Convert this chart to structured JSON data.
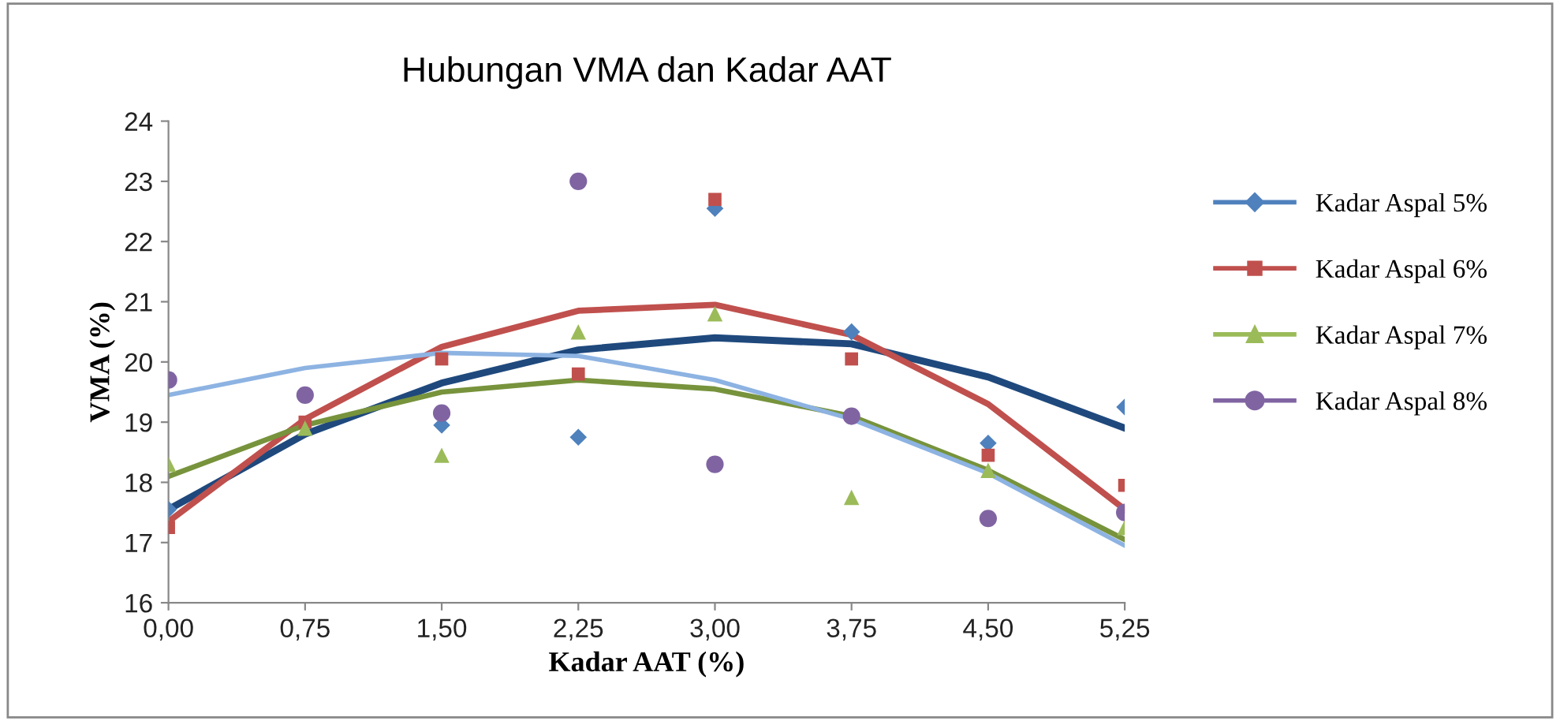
{
  "chart_data": {
    "type": "scatter",
    "title": "Hubungan VMA dan Kadar AAT",
    "xlabel": "Kadar AAT (%)",
    "ylabel": "VMA (%)",
    "x": [
      0,
      0.75,
      1.5,
      2.25,
      3.0,
      3.75,
      4.5,
      5.25
    ],
    "xlim": [
      0,
      5.25
    ],
    "ylim": [
      16,
      24
    ],
    "xticks": [
      {
        "value": 0,
        "label": "0,00"
      },
      {
        "value": 0.75,
        "label": "0,75"
      },
      {
        "value": 1.5,
        "label": "1,50"
      },
      {
        "value": 2.25,
        "label": "2,25"
      },
      {
        "value": 3.0,
        "label": "3,00"
      },
      {
        "value": 3.75,
        "label": "3,75"
      },
      {
        "value": 4.5,
        "label": "4,50"
      },
      {
        "value": 5.25,
        "label": "5,25"
      }
    ],
    "yticks": [
      16,
      17,
      18,
      19,
      20,
      21,
      22,
      23,
      24
    ],
    "grid": false,
    "legend": "right",
    "series": [
      {
        "name": "Kadar Aspal 5%",
        "color": "#4f81bd",
        "marker": "diamond",
        "values": [
          17.55,
          null,
          18.95,
          18.75,
          22.55,
          20.5,
          18.65,
          19.25
        ]
      },
      {
        "name": "Kadar Aspal 6%",
        "color": "#c0504d",
        "marker": "square",
        "values": [
          17.25,
          19.0,
          20.05,
          19.8,
          22.7,
          20.05,
          18.45,
          17.95
        ]
      },
      {
        "name": "Kadar Aspal 7%",
        "color": "#9bbb59",
        "marker": "triangle",
        "values": [
          18.3,
          18.9,
          18.45,
          20.5,
          20.8,
          17.75,
          18.2,
          17.25
        ]
      },
      {
        "name": "Kadar Aspal 8%",
        "color": "#8064a2",
        "marker": "circle",
        "values": [
          19.7,
          19.45,
          19.15,
          23.0,
          18.3,
          19.1,
          17.4,
          17.5
        ]
      },
      {
        "type": "line",
        "color": "#1f497d",
        "x": [
          0,
          0.75,
          1.5,
          2.25,
          3.0,
          3.75,
          4.5,
          5.25
        ],
        "values": [
          17.55,
          18.8,
          19.65,
          20.2,
          20.4,
          20.3,
          19.75,
          18.9
        ]
      },
      {
        "type": "line",
        "color": "#c0504d",
        "x": [
          0,
          0.75,
          1.5,
          2.25,
          3.0,
          3.75,
          4.5,
          5.25
        ],
        "values": [
          17.35,
          19.05,
          20.25,
          20.85,
          20.95,
          20.45,
          19.3,
          17.55
        ]
      },
      {
        "type": "line",
        "color": "#77933c",
        "x": [
          0,
          0.75,
          1.5,
          2.25,
          3.0,
          3.75,
          4.5,
          5.25
        ],
        "values": [
          18.1,
          18.95,
          19.5,
          19.7,
          19.55,
          19.1,
          18.2,
          17.05
        ]
      },
      {
        "type": "line",
        "color": "#8db3e2",
        "x": [
          0,
          0.75,
          1.5,
          2.25,
          3.0,
          3.75,
          4.5,
          5.25
        ],
        "values": [
          19.45,
          19.9,
          20.15,
          20.1,
          19.7,
          19.05,
          18.15,
          16.95
        ]
      }
    ]
  }
}
